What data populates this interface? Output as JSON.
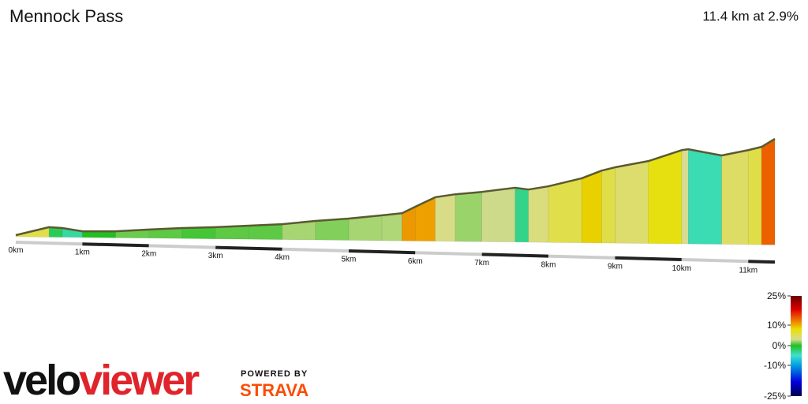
{
  "chart_data": {
    "type": "profile",
    "title": "Mennock Pass",
    "subtitle": "11.4 km at 2.9%",
    "x": [
      0,
      0.5,
      0.7,
      1.0,
      1.5,
      2.0,
      2.5,
      3.0,
      3.5,
      4.0,
      4.5,
      5.0,
      5.5,
      5.8,
      6.0,
      6.3,
      6.6,
      7.0,
      7.5,
      7.7,
      8.0,
      8.5,
      8.8,
      9.0,
      9.5,
      10.0,
      10.1,
      10.6,
      11.0,
      11.2,
      11.4
    ],
    "values": [
      150,
      177,
      174,
      163,
      163,
      169,
      174,
      177,
      182,
      187,
      198,
      206,
      217,
      224,
      246,
      278,
      288,
      296,
      310,
      304,
      315,
      342,
      368,
      379,
      400,
      437,
      440,
      419,
      437,
      448,
      475
    ],
    "xlim": [
      0,
      11.4
    ],
    "xticks": [
      {
        "value": 0,
        "label": "0km"
      },
      {
        "value": 1,
        "label": "1km"
      },
      {
        "value": 2,
        "label": "2km"
      },
      {
        "value": 3,
        "label": "3km"
      },
      {
        "value": 4,
        "label": "4km"
      },
      {
        "value": 5,
        "label": "5km"
      },
      {
        "value": 6,
        "label": "6km"
      },
      {
        "value": 7,
        "label": "7km"
      },
      {
        "value": 8,
        "label": "8km"
      },
      {
        "value": 9,
        "label": "9km"
      },
      {
        "value": 10,
        "label": "10km"
      },
      {
        "value": 11,
        "label": "11km"
      }
    ],
    "colorscale": [
      [
        -25,
        "#000050"
      ],
      [
        -18,
        "#0000e0"
      ],
      [
        -10,
        "#00a0e0"
      ],
      [
        -5,
        "#40e0d0"
      ],
      [
        0,
        "#20c020"
      ],
      [
        3,
        "#d8dc90"
      ],
      [
        8,
        "#e8e000"
      ],
      [
        12,
        "#f08000"
      ],
      [
        18,
        "#e00000"
      ],
      [
        25,
        "#6b0000"
      ]
    ],
    "legend_ticks": [
      {
        "value": 25,
        "label": "25%"
      },
      {
        "value": 10,
        "label": "10%"
      },
      {
        "value": 0,
        "label": "0%"
      },
      {
        "value": -10,
        "label": "-10%"
      },
      {
        "value": -25,
        "label": "-25%"
      }
    ]
  },
  "branding": {
    "logo_part1": "velo",
    "logo_part2": "viewer",
    "powered_by": "POWERED BY",
    "strava": "STRAVA"
  }
}
